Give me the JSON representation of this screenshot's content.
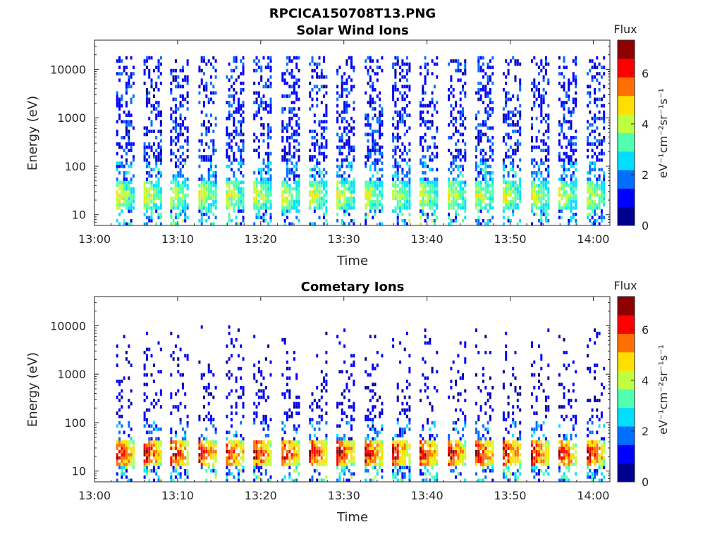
{
  "figure_title": "RPCICA150708T13.PNG",
  "colorscale": [
    "#00008f",
    "#0000ff",
    "#006fff",
    "#00dfff",
    "#50ffaf",
    "#bfff40",
    "#ffdf00",
    "#ff7000",
    "#ff0000",
    "#8f0000"
  ],
  "chart_data": [
    {
      "type": "heatmap",
      "title": "Solar Wind Ions",
      "xlabel": "Time",
      "ylabel": "Energy (eV)",
      "x_ticks": [
        "13:00",
        "13:10",
        "13:20",
        "13:30",
        "13:40",
        "13:50",
        "14:00"
      ],
      "x_range": [
        "13:00",
        "14:02"
      ],
      "y_scale": "log",
      "y_ticks": [
        "10",
        "100",
        "1000",
        "10000"
      ],
      "y_range": [
        6,
        40000
      ],
      "colorbar": {
        "label": "Flux",
        "units": "eV⁻¹cm⁻²sr⁻¹s⁻¹",
        "ticks": [
          "0",
          "2",
          "4",
          "6"
        ],
        "range": [
          0,
          7.3
        ]
      },
      "sweep_start_minutes": [
        2.6,
        5.9,
        9.1,
        12.5,
        15.8,
        19.1,
        22.5,
        25.8,
        29.1,
        32.5,
        35.8,
        39.1,
        42.5,
        45.8,
        49.1,
        52.5,
        55.8,
        59.2
      ],
      "sweep_duration_minutes": 2.0,
      "low_energy_band_eV": [
        12,
        50
      ],
      "low_energy_peak_flux": 4.5,
      "high_energy_band_eV": [
        50,
        20000
      ],
      "high_energy_flux": 1.0
    },
    {
      "type": "heatmap",
      "title": "Cometary Ions",
      "xlabel": "Time",
      "ylabel": "Energy (eV)",
      "x_ticks": [
        "13:00",
        "13:10",
        "13:20",
        "13:30",
        "13:40",
        "13:50",
        "14:00"
      ],
      "x_range": [
        "13:00",
        "14:02"
      ],
      "y_scale": "log",
      "y_ticks": [
        "10",
        "100",
        "1000",
        "10000"
      ],
      "y_range": [
        6,
        40000
      ],
      "colorbar": {
        "label": "Flux",
        "units": "eV⁻¹cm⁻²sr⁻¹s⁻¹",
        "ticks": [
          "0",
          "2",
          "4",
          "6"
        ],
        "range": [
          0,
          7.3
        ]
      },
      "sweep_start_minutes": [
        2.6,
        5.9,
        9.1,
        12.5,
        15.8,
        19.1,
        22.5,
        25.8,
        29.1,
        32.5,
        35.8,
        39.1,
        42.5,
        45.8,
        49.1,
        52.5,
        55.8,
        59.2
      ],
      "sweep_duration_minutes": 2.0,
      "low_energy_band_eV": [
        12,
        45
      ],
      "low_energy_peak_flux": 6.8,
      "high_energy_band_eV": [
        50,
        10000
      ],
      "high_energy_flux": 0.8
    }
  ]
}
